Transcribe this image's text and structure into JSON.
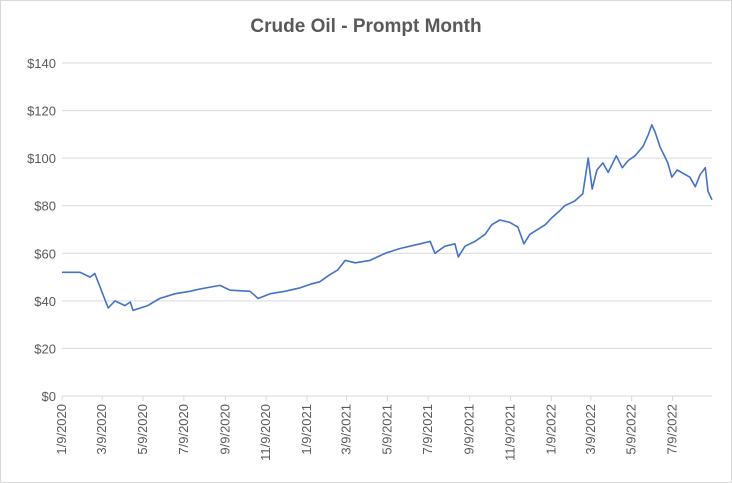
{
  "chart_data": {
    "type": "line",
    "title": "Crude Oil - Prompt Month",
    "xlabel": "",
    "ylabel": "",
    "ylim": [
      0,
      140
    ],
    "xlim": [
      "2020-01-09",
      "2022-09-06"
    ],
    "grid": "horizontal",
    "legend": "none",
    "line_color": "#4472c4",
    "y_ticks": [
      0,
      20,
      40,
      60,
      80,
      100,
      120,
      140
    ],
    "y_tick_labels": [
      "$0",
      "$20",
      "$40",
      "$60",
      "$80",
      "$100",
      "$120",
      "$140"
    ],
    "x_ticks": [
      "2020-01-09",
      "2020-03-09",
      "2020-05-09",
      "2020-07-09",
      "2020-09-09",
      "2020-11-09",
      "2021-01-09",
      "2021-03-09",
      "2021-05-09",
      "2021-07-09",
      "2021-09-09",
      "2021-11-09",
      "2022-01-09",
      "2022-03-09",
      "2022-05-09",
      "2022-07-09"
    ],
    "x_tick_labels": [
      "1/9/2020",
      "3/9/2020",
      "5/9/2020",
      "7/9/2020",
      "9/9/2020",
      "11/9/2020",
      "1/9/2021",
      "3/9/2021",
      "5/9/2021",
      "7/9/2021",
      "9/9/2021",
      "11/9/2021",
      "1/9/2022",
      "3/9/2022",
      "5/9/2022",
      "7/9/2022"
    ],
    "series": [
      {
        "x": [
          "2020-01-09",
          "2020-02-05",
          "2020-02-20",
          "2020-02-27",
          "2020-03-18",
          "2020-03-28",
          "2020-04-12",
          "2020-04-20",
          "2020-04-24",
          "2020-05-05",
          "2020-05-16",
          "2020-06-03",
          "2020-06-26",
          "2020-07-18",
          "2020-08-02",
          "2020-09-01",
          "2020-09-16",
          "2020-10-16",
          "2020-10-28",
          "2020-11-15",
          "2020-12-07",
          "2020-12-30",
          "2021-01-14",
          "2021-01-28",
          "2021-02-12",
          "2021-02-24",
          "2021-03-07",
          "2021-03-22",
          "2021-04-13",
          "2021-05-06",
          "2021-05-28",
          "2021-06-27",
          "2021-07-12",
          "2021-07-19",
          "2021-08-03",
          "2021-08-18",
          "2021-08-23",
          "2021-09-02",
          "2021-09-17",
          "2021-10-02",
          "2021-10-12",
          "2021-10-24",
          "2021-11-08",
          "2021-11-20",
          "2021-11-29",
          "2021-12-08",
          "2021-12-31",
          "2022-01-10",
          "2022-01-22",
          "2022-01-29",
          "2022-02-13",
          "2022-02-21",
          "2022-02-25",
          "2022-03-05",
          "2022-03-11",
          "2022-03-18",
          "2022-03-27",
          "2022-04-04",
          "2022-04-16",
          "2022-04-25",
          "2022-05-04",
          "2022-05-14",
          "2022-05-26",
          "2022-06-03",
          "2022-06-08",
          "2022-06-13",
          "2022-06-20",
          "2022-07-02",
          "2022-07-08",
          "2022-07-16",
          "2022-08-04",
          "2022-08-12",
          "2022-08-19",
          "2022-08-27",
          "2022-08-31",
          "2022-09-06"
        ],
        "values": [
          52,
          52,
          50,
          51.5,
          37,
          40,
          38,
          39.5,
          36,
          37,
          38,
          41,
          43,
          44,
          45,
          46.5,
          44.5,
          44,
          41,
          43,
          44,
          45.5,
          47,
          48,
          51,
          53,
          57,
          56,
          57,
          60,
          62,
          64,
          65,
          60,
          63,
          64,
          58.5,
          63,
          65,
          68,
          72,
          74,
          73,
          71,
          64,
          68,
          72,
          75,
          78,
          80,
          82,
          84,
          85,
          100,
          87,
          95,
          98,
          94,
          101,
          96,
          99,
          101,
          105,
          110,
          114,
          111,
          105,
          98,
          92,
          95,
          92,
          88,
          93,
          96,
          86,
          82.5
        ]
      }
    ]
  }
}
